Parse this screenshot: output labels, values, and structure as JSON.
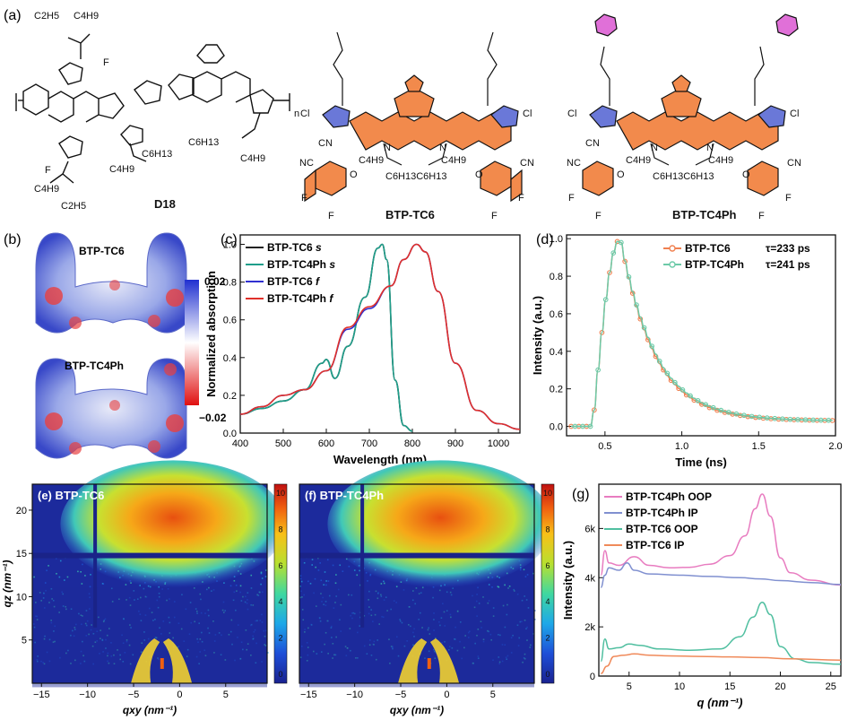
{
  "panel_labels": {
    "a": "(a)",
    "b": "(b)",
    "c": "(c)",
    "d": "(d)",
    "e": "(e)",
    "f": "(f)",
    "g": "(g)"
  },
  "structures": {
    "d18": {
      "name": "D18",
      "subs": {
        "c2h5_top": "C2H5",
        "c4h9_top": "C4H9",
        "f_top": "F",
        "c6h13_mid": "C6H13",
        "c4h9_mid": "C4H9",
        "c6h13_r": "C6H13",
        "c4h9_r": "C4H9",
        "f_bot": "F",
        "c2h5_bot": "C2H5",
        "c4h9_bot": "C4H9",
        "n": "n"
      }
    },
    "btp_tc6": {
      "name": "BTP-TC6",
      "subs": {
        "cl_l": "Cl",
        "cl_r": "Cl",
        "cn1": "CN",
        "nc": "NC",
        "cn2": "CN",
        "c4h9_l": "C4H9",
        "c4h9_r": "C4H9",
        "c6h13": "C6H13C6H13",
        "n_l": "N",
        "n_r": "N",
        "o_l": "O",
        "o_r": "O",
        "f1": "F",
        "f2": "F",
        "f3": "F",
        "f4": "F"
      }
    },
    "btp_tc4ph": {
      "name": "BTP-TC4Ph",
      "subs": {
        "cl_l": "Cl",
        "cl_r": "Cl",
        "cn1": "CN",
        "nc": "NC",
        "cn2": "CN",
        "c4h9_l": "C4H9",
        "c4h9_r": "C4H9",
        "c6h13": "C6H13C6H13",
        "n_l": "N",
        "n_r": "N",
        "o_l": "O",
        "o_r": "O",
        "f1": "F",
        "f2": "F",
        "f3": "F",
        "f4": "F"
      }
    }
  },
  "esp": {
    "label_top": "BTP-TC6",
    "label_bottom": "BTP-TC4Ph",
    "scale_max": "0.02",
    "scale_min": "−0.02"
  },
  "chart_data": [
    {
      "id": "c",
      "type": "line",
      "xlabel": "Wavelength (nm)",
      "ylabel": "Normalized absorption",
      "xlim": [
        400,
        1050
      ],
      "ylim": [
        0,
        1.05
      ],
      "xticks": [
        "400",
        "500",
        "600",
        "700",
        "800",
        "900",
        "1000"
      ],
      "yticks": [
        "0.0",
        "0.2",
        "0.4",
        "0.6",
        "0.8",
        "1.0"
      ],
      "series": [
        {
          "name": "BTP-TC6 s",
          "color": "#222222",
          "x": [
            400,
            450,
            500,
            550,
            590,
            600,
            620,
            650,
            690,
            720,
            730,
            740,
            760,
            780,
            800
          ],
          "y": [
            0.1,
            0.13,
            0.17,
            0.23,
            0.37,
            0.39,
            0.29,
            0.46,
            0.72,
            0.98,
            1.0,
            0.92,
            0.28,
            0.04,
            0.01
          ]
        },
        {
          "name": "BTP-TC4Ph s",
          "color": "#1e9e8a",
          "x": [
            400,
            450,
            500,
            550,
            590,
            600,
            620,
            650,
            690,
            720,
            730,
            740,
            760,
            780,
            800
          ],
          "y": [
            0.1,
            0.13,
            0.17,
            0.23,
            0.37,
            0.39,
            0.29,
            0.46,
            0.72,
            0.98,
            1.0,
            0.92,
            0.28,
            0.04,
            0.01
          ]
        },
        {
          "name": "BTP-TC6 f",
          "color": "#3030d0",
          "x": [
            400,
            450,
            500,
            550,
            600,
            650,
            700,
            750,
            780,
            810,
            830,
            860,
            900,
            950,
            1000,
            1050
          ],
          "y": [
            0.1,
            0.14,
            0.2,
            0.23,
            0.33,
            0.55,
            0.66,
            0.78,
            0.92,
            1.0,
            0.96,
            0.75,
            0.37,
            0.12,
            0.05,
            0.02
          ]
        },
        {
          "name": "BTP-TC4Ph f",
          "color": "#e0302a",
          "x": [
            400,
            450,
            500,
            550,
            600,
            650,
            700,
            750,
            780,
            810,
            830,
            860,
            900,
            950,
            1000,
            1050
          ],
          "y": [
            0.1,
            0.14,
            0.2,
            0.23,
            0.33,
            0.56,
            0.67,
            0.78,
            0.92,
            1.0,
            0.96,
            0.75,
            0.37,
            0.12,
            0.05,
            0.02
          ]
        }
      ]
    },
    {
      "id": "d",
      "type": "scatter",
      "xlabel": "Time (ns)",
      "ylabel": "Intensity (a.u.)",
      "xlim": [
        0.25,
        2.0
      ],
      "ylim": [
        -0.05,
        1.02
      ],
      "xticks": [
        "0.5",
        "1.0",
        "1.5",
        "2.0"
      ],
      "yticks": [
        "0.0",
        "0.2",
        "0.4",
        "0.6",
        "0.8",
        "1.0"
      ],
      "series": [
        {
          "name": "BTP-TC6",
          "tau": "τ=233 ps",
          "color": "#f08050"
        },
        {
          "name": "BTP-TC4Ph",
          "tau": "τ=241 ps",
          "color": "#6ccaa8"
        }
      ]
    },
    {
      "id": "e",
      "type": "heatmap",
      "title": "BTP-TC6",
      "xlabel": "qxy (nm⁻¹)",
      "ylabel": "qz (nm⁻¹)",
      "xticks": [
        "−15",
        "−10",
        "−5",
        "0",
        "5"
      ],
      "yticks": [
        "5",
        "10",
        "15",
        "20"
      ],
      "colorbar": [
        "10",
        "8",
        "6",
        "4",
        "2",
        "0"
      ]
    },
    {
      "id": "f",
      "type": "heatmap",
      "title": "BTP-TC4Ph",
      "xlabel": "qxy (nm⁻¹)",
      "xticks": [
        "−15",
        "−10",
        "−5",
        "0",
        "5"
      ],
      "colorbar": [
        "10",
        "8",
        "6",
        "4",
        "2",
        "0"
      ]
    },
    {
      "id": "g",
      "type": "line",
      "xlabel": "q (nm⁻¹)",
      "ylabel": "Intensity (a.u.)",
      "xlim": [
        2,
        26
      ],
      "ylim": [
        0,
        7800
      ],
      "xticks": [
        "5",
        "10",
        "15",
        "20",
        "25"
      ],
      "yticks": [
        "0",
        "2k",
        "4k",
        "6k"
      ],
      "series": [
        {
          "name": "BTP-TC4Ph OOP",
          "color": "#e87cc0",
          "x": [
            2.2,
            2.6,
            3,
            4,
            5.5,
            7,
            9,
            11,
            13,
            15,
            16.5,
            17.5,
            18.2,
            19,
            20,
            21,
            23,
            26
          ],
          "y": [
            4100,
            5100,
            4600,
            4500,
            4850,
            4500,
            4400,
            4420,
            4550,
            4900,
            5700,
            6800,
            7400,
            6500,
            4800,
            4200,
            3900,
            3700
          ]
        },
        {
          "name": "BTP-TC4Ph IP",
          "color": "#8090d0",
          "x": [
            2.2,
            2.6,
            3,
            4,
            4.8,
            5.5,
            7,
            10,
            13,
            16,
            18,
            20,
            23,
            26
          ],
          "y": [
            3600,
            4100,
            4400,
            4300,
            4600,
            4300,
            4150,
            4100,
            4050,
            4000,
            3950,
            3880,
            3800,
            3720
          ]
        },
        {
          "name": "BTP-TC6 OOP",
          "color": "#50bfa0",
          "x": [
            2.2,
            2.6,
            3,
            4,
            5,
            6,
            8,
            11,
            14,
            16,
            17.3,
            18.2,
            19,
            20,
            21.5,
            23,
            26
          ],
          "y": [
            600,
            1500,
            1100,
            1150,
            1300,
            1250,
            1100,
            1050,
            1100,
            1600,
            2400,
            3000,
            2500,
            1200,
            700,
            550,
            480
          ]
        },
        {
          "name": "BTP-TC6 IP",
          "color": "#f08a5a",
          "x": [
            2.2,
            2.8,
            3.5,
            4.5,
            5.5,
            7,
            9,
            12,
            15,
            18,
            21,
            26
          ],
          "y": [
            100,
            400,
            800,
            850,
            900,
            850,
            820,
            800,
            780,
            750,
            700,
            650
          ]
        }
      ]
    }
  ]
}
